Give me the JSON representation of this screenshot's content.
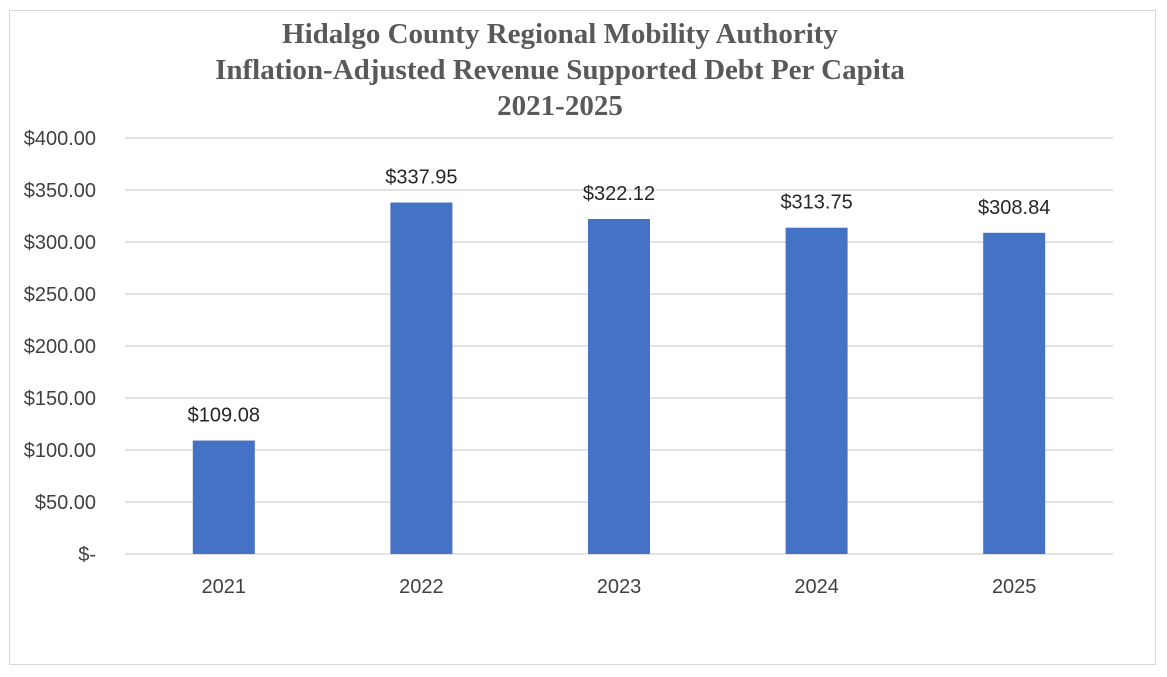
{
  "chart_data": {
    "type": "bar",
    "title": [
      "Hidalgo County Regional Mobility Authority",
      "Inflation-Adjusted Revenue Supported Debt Per Capita",
      "2021-2025"
    ],
    "categories": [
      "2021",
      "2022",
      "2023",
      "2024",
      "2025"
    ],
    "values": [
      109.08,
      337.95,
      322.12,
      313.75,
      308.84
    ],
    "data_labels": [
      "$109.08",
      "$337.95",
      "$322.12",
      "$313.75",
      "$308.84"
    ],
    "ylim": [
      0,
      400
    ],
    "ytick_values": [
      0,
      50,
      100,
      150,
      200,
      250,
      300,
      350,
      400
    ],
    "ytick_labels": [
      "$-",
      "$50.00",
      "$100.00",
      "$150.00",
      "$200.00",
      "$250.00",
      "$300.00",
      "$350.00",
      "$400.00"
    ],
    "grid": true,
    "legend": "none",
    "bar_color": "#4472C4",
    "grid_color": "#d9d9d9"
  }
}
